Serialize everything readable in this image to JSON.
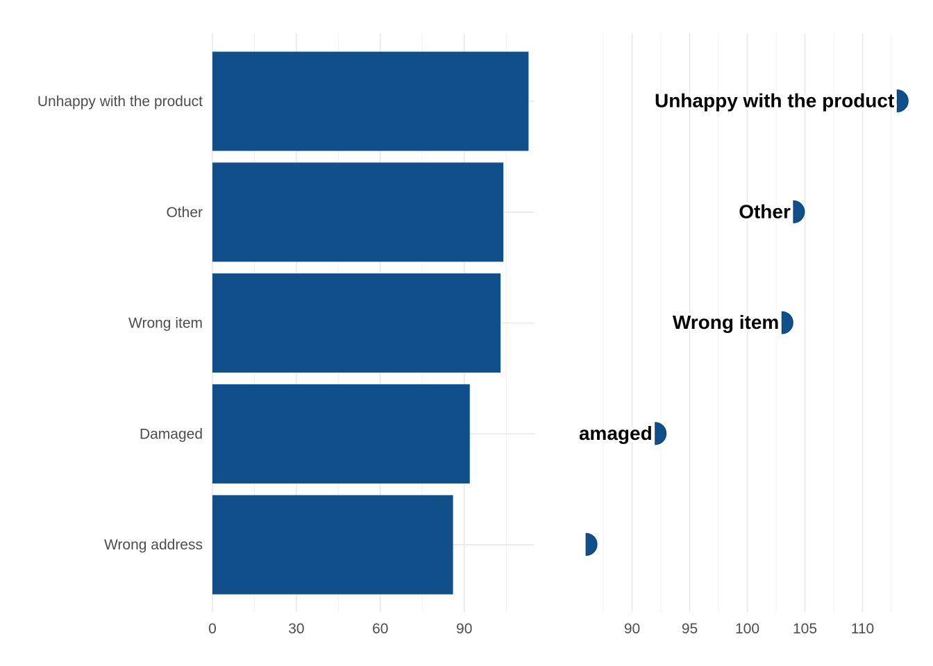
{
  "chart_data": [
    {
      "type": "bar",
      "orientation": "horizontal",
      "categories": [
        "Unhappy with the product",
        "Other",
        "Wrong item",
        "Damaged",
        "Wrong address"
      ],
      "values": [
        113,
        104,
        103,
        92,
        86
      ],
      "xlim": [
        0,
        115
      ],
      "xticks": [
        0,
        30,
        60,
        90
      ],
      "grid": true,
      "color": "#114f8a"
    },
    {
      "type": "scatter",
      "marker": "half-circle",
      "categories": [
        "Unhappy with the product",
        "Other",
        "Wrong item",
        "Damaged",
        "Wrong address"
      ],
      "point_labels": [
        "Unhappy with the product",
        "Other",
        "Wrong item",
        "Damaged",
        ""
      ],
      "values": [
        113,
        104,
        103,
        92,
        86
      ],
      "xlim": [
        85.5,
        114
      ],
      "xticks": [
        90,
        95,
        100,
        105,
        110
      ],
      "grid": true,
      "color": "#114f8a"
    }
  ]
}
